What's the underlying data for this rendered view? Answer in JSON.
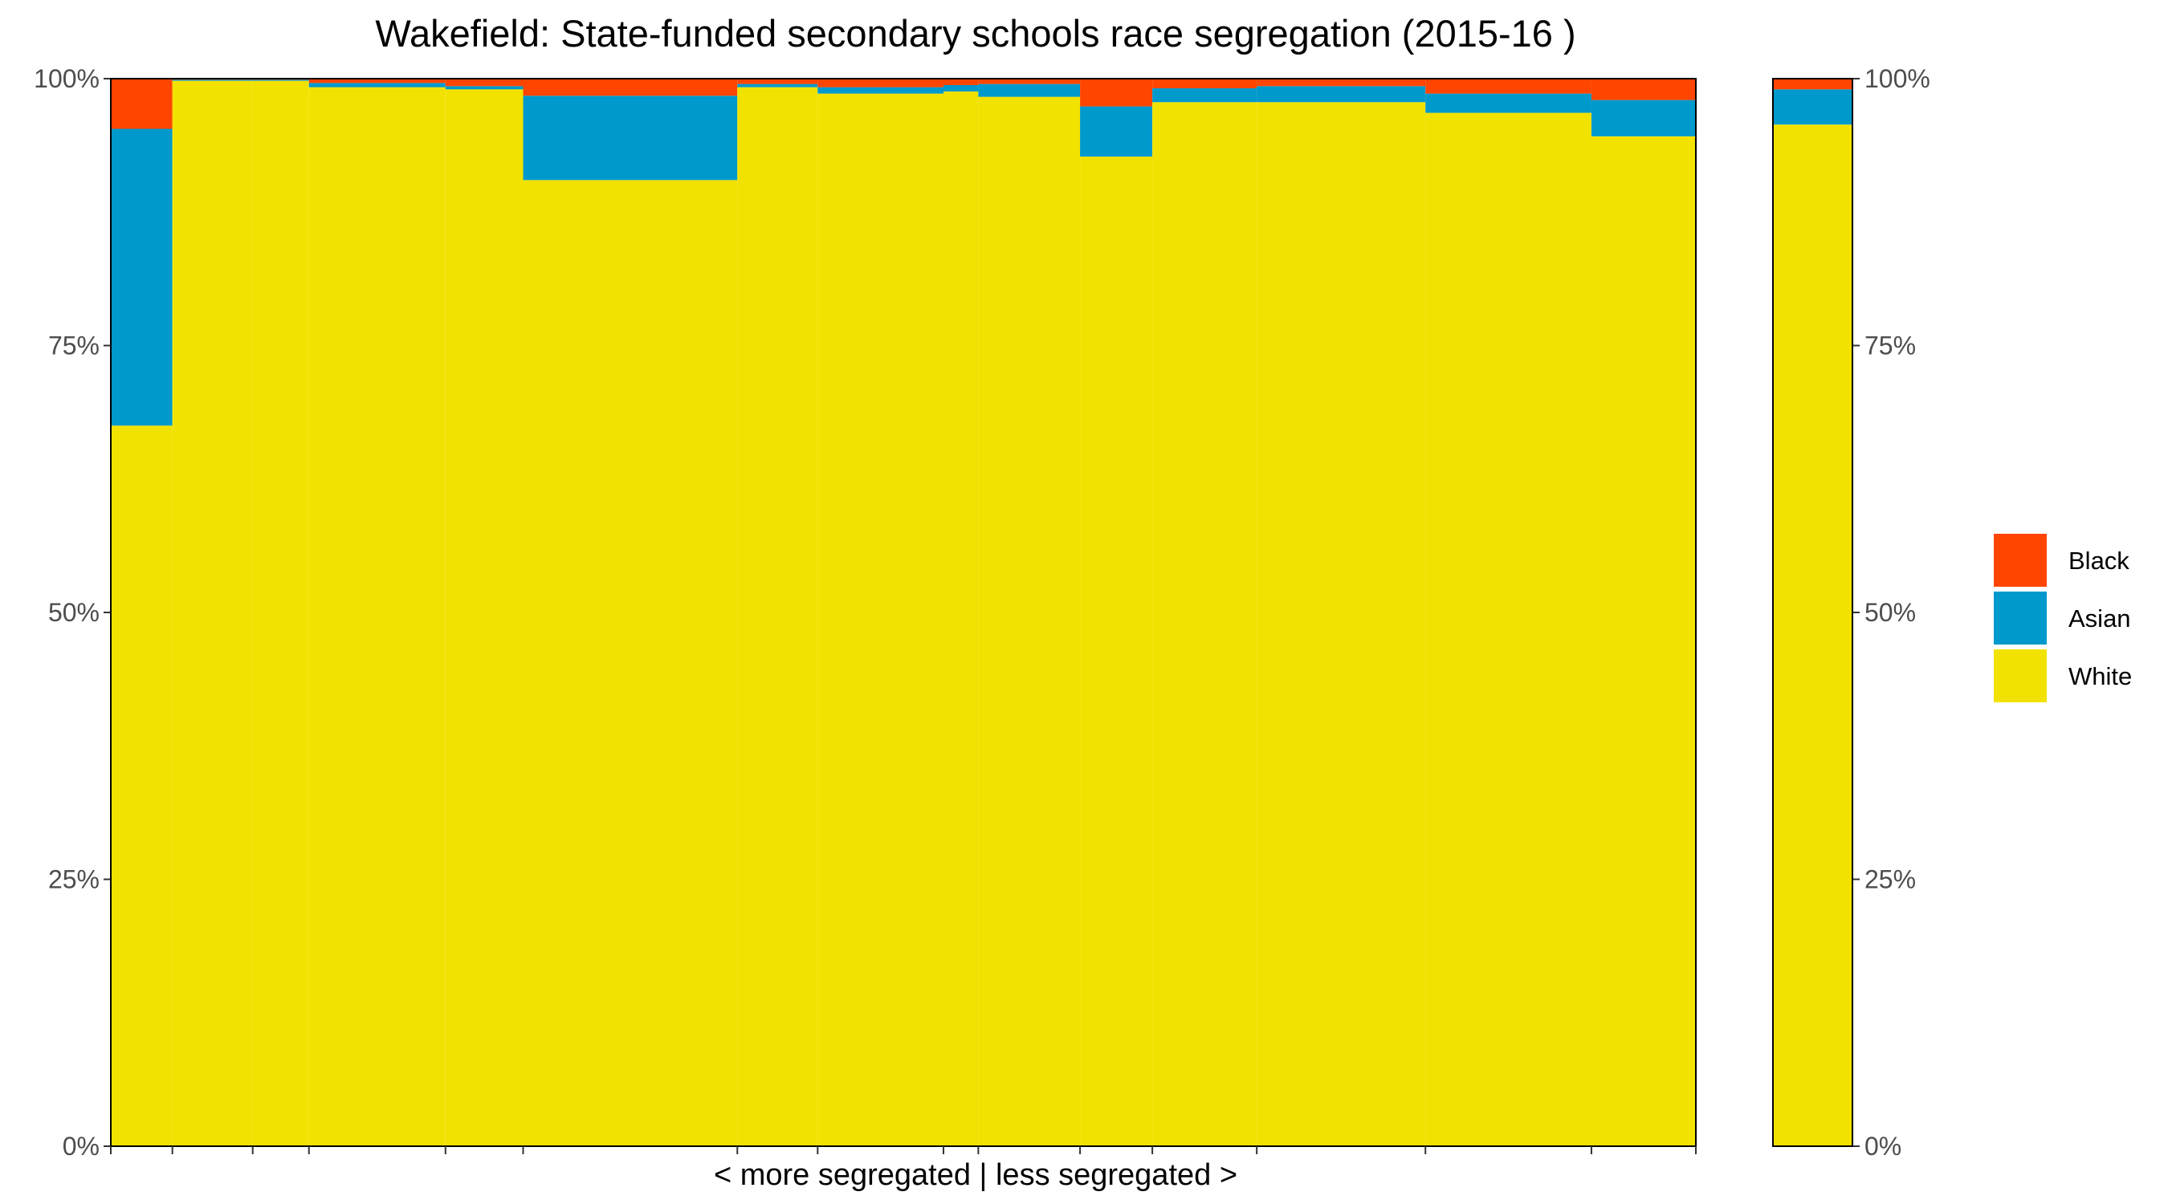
{
  "chart_data": {
    "type": "bar",
    "subtype": "stacked-100-percent-variable-width",
    "title": "Wakefield: State-funded secondary schools race segregation (2015-16 )",
    "xlabel": "< more segregated | less segregated >",
    "ylabel": "",
    "y_ticks": [
      "0%",
      "25%",
      "50%",
      "75%",
      "100%"
    ],
    "ylim": [
      0,
      100
    ],
    "secondary_y_axis": true,
    "grid": false,
    "legend_position": "right",
    "stack_order": [
      "White",
      "Asian",
      "Black"
    ],
    "legend": [
      {
        "name": "Black",
        "color": "#FF4500"
      },
      {
        "name": "Asian",
        "color": "#0099CC"
      },
      {
        "name": "White",
        "color": "#F2E200"
      }
    ],
    "bars": [
      {
        "width": 2.3,
        "White": 67.5,
        "Asian": 27.8,
        "Black": 4.7
      },
      {
        "width": 3.0,
        "White": 99.8,
        "Asian": 0.1,
        "Black": 0.1
      },
      {
        "width": 2.1,
        "White": 99.8,
        "Asian": 0.1,
        "Black": 0.1
      },
      {
        "width": 5.1,
        "White": 99.2,
        "Asian": 0.4,
        "Black": 0.4
      },
      {
        "width": 2.9,
        "White": 99.0,
        "Asian": 0.3,
        "Black": 0.7
      },
      {
        "width": 8.0,
        "White": 90.5,
        "Asian": 7.9,
        "Black": 1.6
      },
      {
        "width": 3.0,
        "White": 99.2,
        "Asian": 0.3,
        "Black": 0.5
      },
      {
        "width": 4.7,
        "White": 98.6,
        "Asian": 0.6,
        "Black": 0.8
      },
      {
        "width": 1.3,
        "White": 98.8,
        "Asian": 0.6,
        "Black": 0.6
      },
      {
        "width": 3.8,
        "White": 98.3,
        "Asian": 1.2,
        "Black": 0.5
      },
      {
        "width": 2.7,
        "White": 92.7,
        "Asian": 4.7,
        "Black": 2.6
      },
      {
        "width": 3.9,
        "White": 97.8,
        "Asian": 1.3,
        "Black": 0.9
      },
      {
        "width": 6.3,
        "White": 97.8,
        "Asian": 1.5,
        "Black": 0.7
      },
      {
        "width": 6.2,
        "White": 96.8,
        "Asian": 1.8,
        "Black": 1.4
      },
      {
        "width": 3.9,
        "White": 94.6,
        "Asian": 3.4,
        "Black": 2.0
      }
    ],
    "summary_bar": {
      "White": 95.7,
      "Asian": 3.3,
      "Black": 1.0
    }
  }
}
